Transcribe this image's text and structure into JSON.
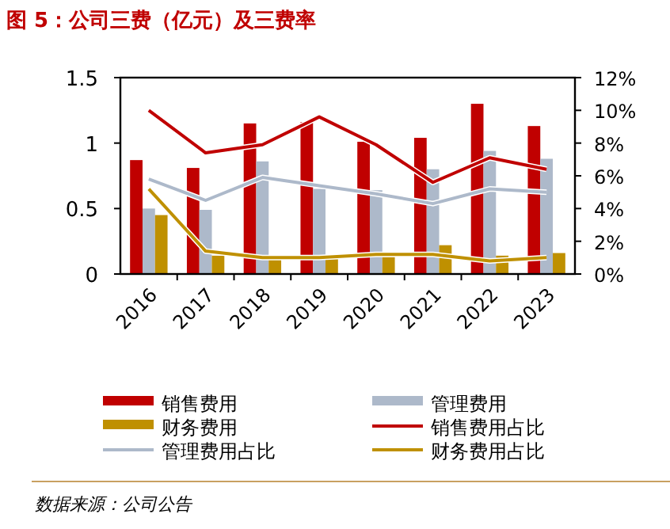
{
  "chart_data": {
    "type": "bar",
    "title": "图 5：公司三费（亿元）及三费率",
    "categories": [
      "2016",
      "2017",
      "2018",
      "2019",
      "2020",
      "2021",
      "2022",
      "2023"
    ],
    "series": [
      {
        "name": "销售费用",
        "color": "#c00000",
        "values": [
          0.87,
          0.81,
          1.15,
          1.16,
          1.01,
          1.04,
          1.3,
          1.13
        ]
      },
      {
        "name": "管理费用",
        "color": "#adb9ca",
        "values": [
          0.5,
          0.49,
          0.86,
          0.65,
          0.64,
          0.8,
          0.94,
          0.88
        ]
      },
      {
        "name": "财务费用",
        "color": "#bf9000",
        "values": [
          0.45,
          0.14,
          0.14,
          0.13,
          0.13,
          0.22,
          0.14,
          0.16
        ]
      },
      {
        "name": "销售费用占比",
        "type": "line",
        "axis": "y2",
        "color": "#c00000",
        "values": [
          10.0,
          7.4,
          7.9,
          9.6,
          7.9,
          5.6,
          7.1,
          6.4
        ]
      },
      {
        "name": "管理费用占比",
        "type": "line",
        "axis": "y2",
        "color": "#adb9ca",
        "values": [
          5.8,
          4.5,
          5.9,
          5.4,
          4.9,
          4.3,
          5.2,
          5.0
        ]
      },
      {
        "name": "财务费用占比",
        "type": "line",
        "axis": "y2",
        "color": "#bf9000",
        "values": [
          5.2,
          1.4,
          1.0,
          1.0,
          1.2,
          1.2,
          0.8,
          1.0
        ]
      }
    ],
    "ylim": [
      0,
      1.5
    ],
    "yticks": [
      0,
      0.5,
      1,
      1.5
    ],
    "y2lim": [
      0,
      12
    ],
    "y2ticks": [
      {
        "value": 0,
        "label": "0%"
      },
      {
        "value": 2,
        "label": "2%"
      },
      {
        "value": 4,
        "label": "4%"
      },
      {
        "value": 6,
        "label": "6%"
      },
      {
        "value": 8,
        "label": "8%"
      },
      {
        "value": 10,
        "label": "10%"
      },
      {
        "value": 12,
        "label": "12%"
      }
    ],
    "legend": "bottom",
    "annotations": [
      "数据来源：公司公告"
    ]
  }
}
